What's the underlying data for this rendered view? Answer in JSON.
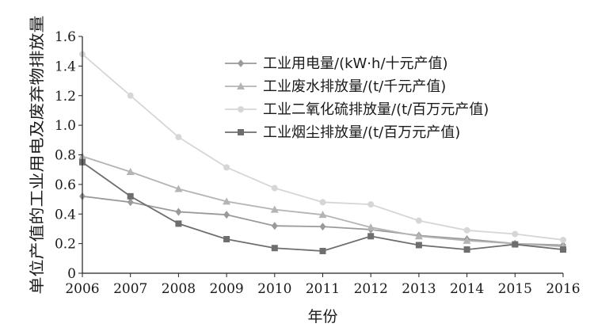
{
  "chart_data": {
    "type": "line",
    "xlabel": "年份",
    "ylabel": "单位产值的工业用电及废弃物排放量",
    "x": [
      "2006",
      "2007",
      "2008",
      "2009",
      "2010",
      "2011",
      "2012",
      "2013",
      "2014",
      "2015",
      "2016"
    ],
    "ylim": [
      0,
      1.6
    ],
    "yticks": [
      "0",
      "0.2",
      "0.4",
      "0.6",
      "0.8",
      "1.0",
      "1.2",
      "1.4",
      "1.6"
    ],
    "grid": false,
    "legend_position": "top-right",
    "series": [
      {
        "name": "工业用电量/(kW·h/十元产值)",
        "marker": "diamond",
        "color": "#9a9a9a",
        "values": [
          0.52,
          0.48,
          0.415,
          0.395,
          0.32,
          0.315,
          0.295,
          0.255,
          0.23,
          0.2,
          0.19
        ]
      },
      {
        "name": "工业废水排放量/(t/千元产值)",
        "marker": "triangle",
        "color": "#b4b4b4",
        "values": [
          0.79,
          0.685,
          0.57,
          0.485,
          0.43,
          0.395,
          0.31,
          0.25,
          0.22,
          0.2,
          0.18
        ]
      },
      {
        "name": "工业二氧化硫排放量/(t/百万元产值)",
        "marker": "circle",
        "color": "#d6d6d6",
        "values": [
          1.48,
          1.2,
          0.92,
          0.715,
          0.575,
          0.48,
          0.465,
          0.355,
          0.29,
          0.265,
          0.225
        ]
      },
      {
        "name": "工业烟尘排放量/(t/百万元产值)",
        "marker": "square",
        "color": "#6e6e6e",
        "values": [
          0.75,
          0.52,
          0.335,
          0.23,
          0.17,
          0.15,
          0.25,
          0.19,
          0.16,
          0.195,
          0.16
        ]
      }
    ]
  }
}
